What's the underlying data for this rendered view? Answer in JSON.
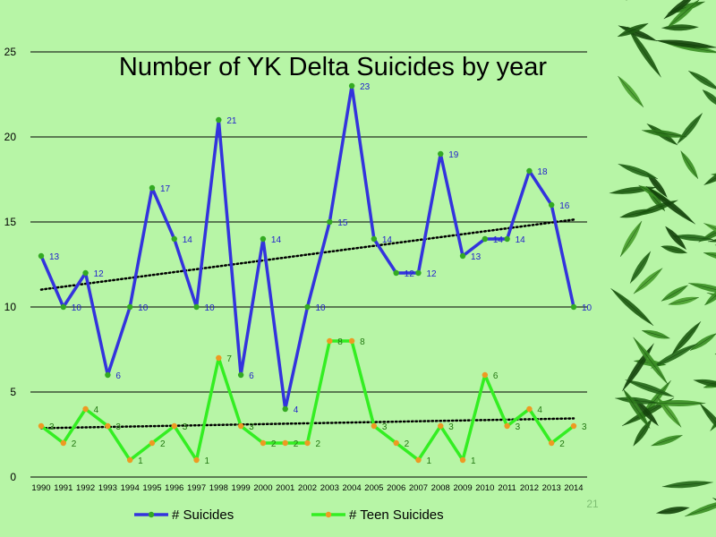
{
  "slide_number": "21",
  "chart_data": {
    "type": "line",
    "title": "Number of YK Delta Suicides by year",
    "x": [
      "1990",
      "1991",
      "1992",
      "1993",
      "1994",
      "1995",
      "1996",
      "1997",
      "1998",
      "1999",
      "2000",
      "2001",
      "2002",
      "2003",
      "2004",
      "2005",
      "2006",
      "2007",
      "2008",
      "2009",
      "2010",
      "2011",
      "2012",
      "2013",
      "2014"
    ],
    "ylim": [
      0,
      25
    ],
    "yticks": [
      0,
      5,
      10,
      15,
      20,
      25
    ],
    "grid": true,
    "legend_position": "bottom",
    "series": [
      {
        "name": "# Suicides",
        "color": "#3333dd",
        "marker_color": "#33aa22",
        "label_color": "#2222cc",
        "values": [
          13,
          10,
          12,
          6,
          10,
          17,
          14,
          10,
          21,
          6,
          14,
          4,
          10,
          15,
          23,
          14,
          12,
          12,
          19,
          13,
          14,
          14,
          18,
          16,
          10
        ],
        "trendline": "linear"
      },
      {
        "name": "# Teen Suicides",
        "color": "#33ee22",
        "marker_color": "#ee9922",
        "label_color": "#227711",
        "values": [
          3,
          2,
          4,
          3,
          1,
          2,
          3,
          1,
          7,
          3,
          2,
          2,
          2,
          8,
          8,
          3,
          2,
          1,
          3,
          1,
          6,
          3,
          4,
          2,
          3
        ],
        "trendline": "linear"
      }
    ]
  }
}
